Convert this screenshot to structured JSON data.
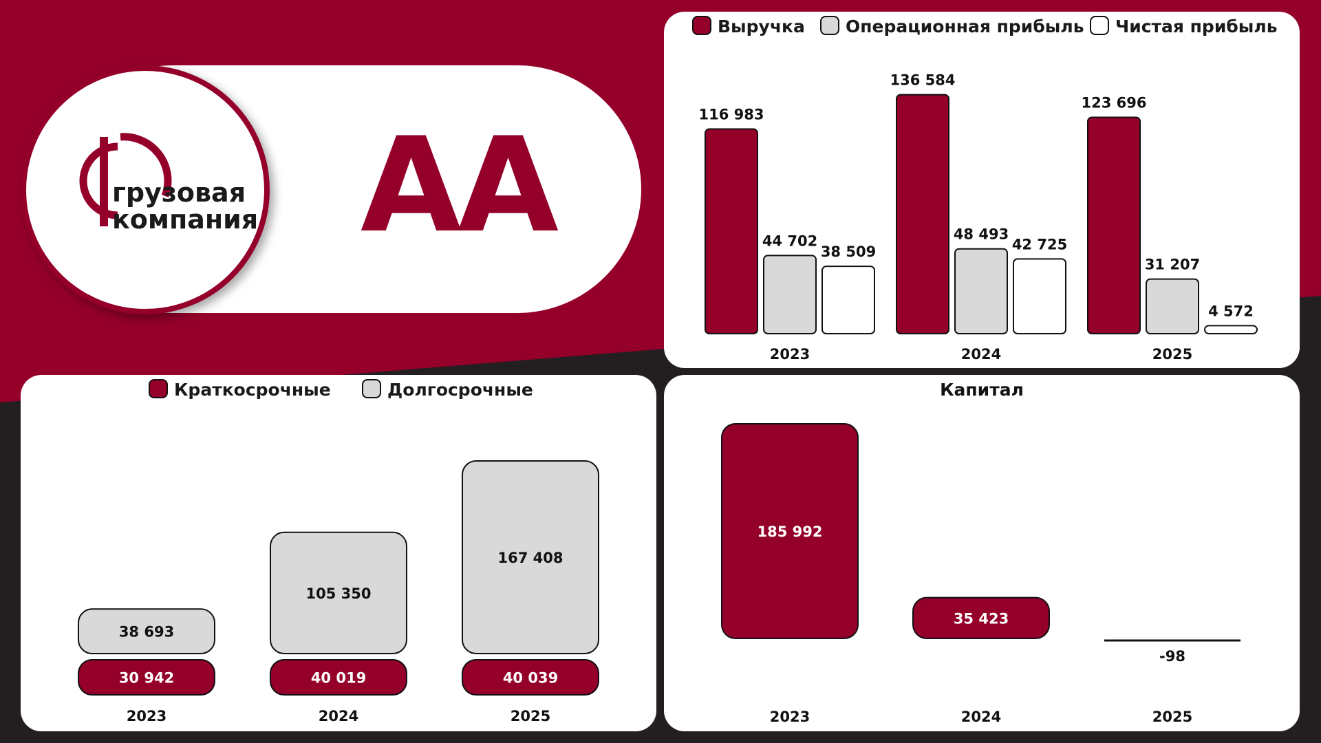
{
  "colors": {
    "brand": "#95002b",
    "grey": "#d9d9d9",
    "white": "#ffffff",
    "dark": "#231f20"
  },
  "logo": {
    "line1": "грузовая",
    "line2": "компания"
  },
  "rating": "AA",
  "chart_data": [
    {
      "type": "bar",
      "categories": [
        "2023",
        "2024",
        "2025"
      ],
      "series": [
        {
          "name": "Выручка",
          "values": [
            116983,
            136584,
            123696
          ]
        },
        {
          "name": "Операционная прибыль",
          "values": [
            44702,
            48493,
            31207
          ]
        },
        {
          "name": "Чистая прибыль",
          "values": [
            38509,
            42725,
            4572
          ]
        }
      ],
      "value_labels": [
        [
          "116 983",
          "136 584",
          "123 696"
        ],
        [
          "44 702",
          "48 493",
          "31 207"
        ],
        [
          "38 509",
          "42 725",
          "4 572"
        ]
      ],
      "legend": "top"
    },
    {
      "type": "bar",
      "stacked": true,
      "categories": [
        "2023",
        "2024",
        "2025"
      ],
      "series": [
        {
          "name": "Краткосрочные",
          "values": [
            30942,
            40019,
            40039
          ]
        },
        {
          "name": "Долгосрочные",
          "values": [
            38693,
            105350,
            167408
          ]
        }
      ],
      "value_labels": [
        [
          "30 942",
          "40 019",
          "40 039"
        ],
        [
          "38 693",
          "105 350",
          "167 408"
        ]
      ],
      "legend": "top"
    },
    {
      "type": "bar",
      "title": "Капитал",
      "categories": [
        "2023",
        "2024",
        "2025"
      ],
      "values": [
        185992,
        35423,
        -98
      ],
      "value_labels": [
        "185 992",
        "35 423",
        "-98"
      ]
    }
  ]
}
